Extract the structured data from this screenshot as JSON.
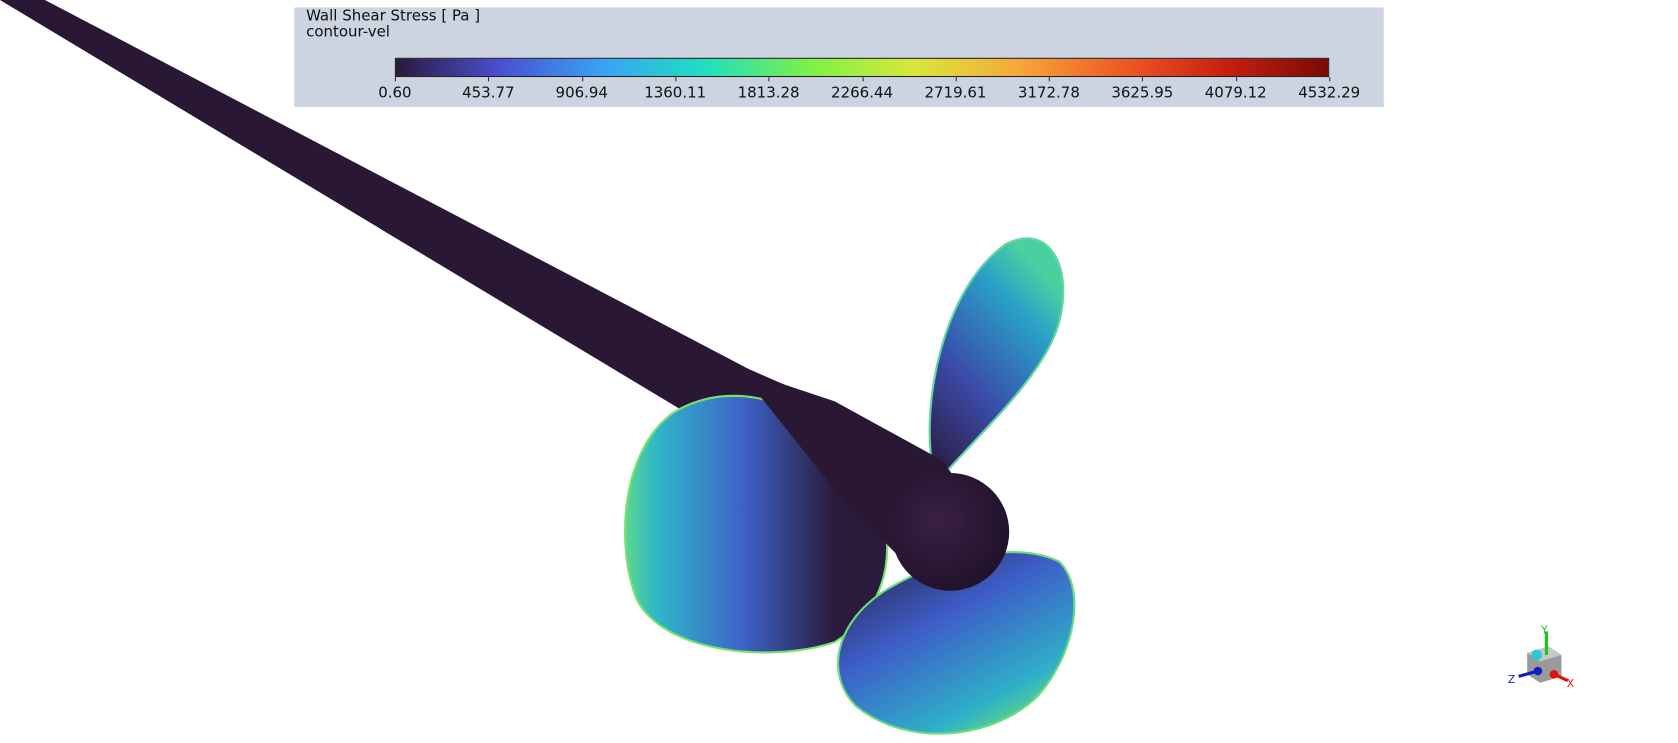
{
  "legend": {
    "title": "Wall Shear Stress [ Pa ]",
    "subtitle": "contour-vel",
    "min": 0.6,
    "max": 4532.29,
    "colormap": [
      "#2a1a3c",
      "#4a4fd0",
      "#3aa3f5",
      "#1fe0c0",
      "#7ef046",
      "#d6e83a",
      "#f7a83a",
      "#ef5a25",
      "#c82010",
      "#7a0a04"
    ],
    "ticks": [
      "0.60",
      "453.77",
      "906.94",
      "1360.11",
      "1813.28",
      "2266.44",
      "2719.61",
      "3172.78",
      "3625.95",
      "4079.12",
      "4532.29"
    ]
  },
  "triad": {
    "x_label": "X",
    "y_label": "Y",
    "z_label": "Z",
    "x_color": "#e01010",
    "y_color": "#22c020",
    "z_color": "#1020c0"
  },
  "scene": {
    "shaft_color": "#2a1733",
    "background": "#ffffff"
  }
}
